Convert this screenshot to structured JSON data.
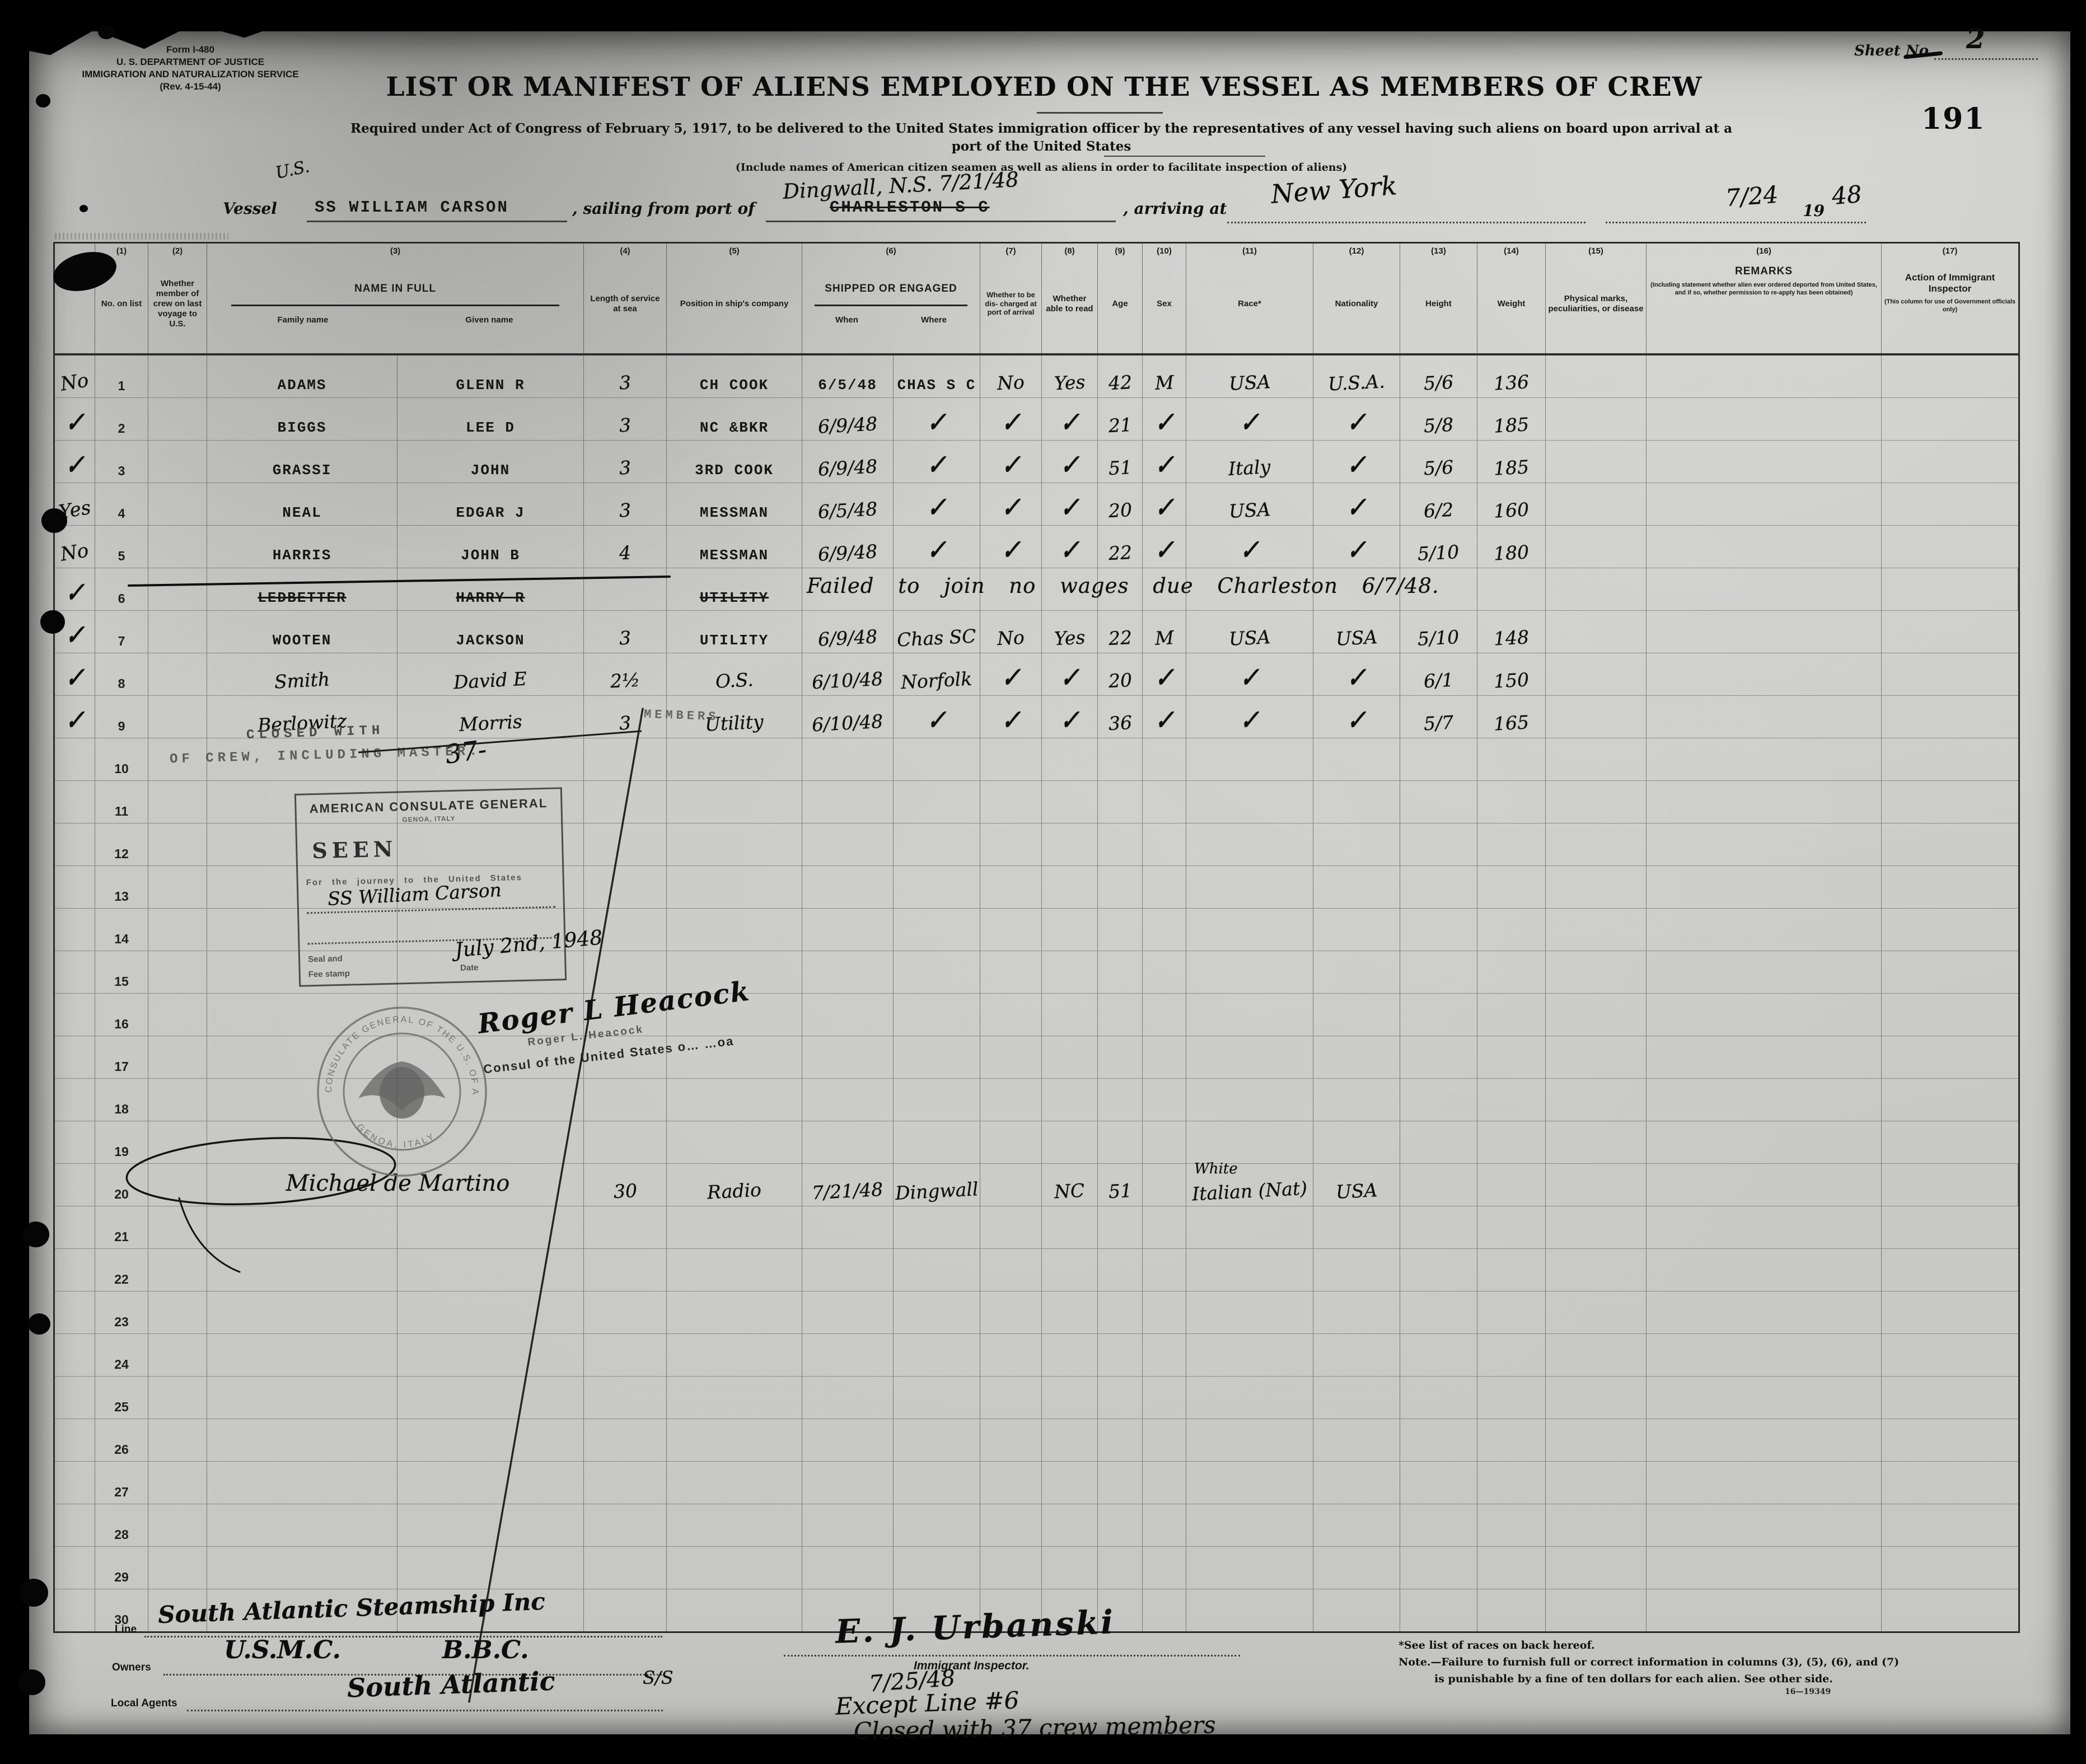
{
  "meta": {
    "form_no": "Form I-480",
    "dept": "U. S. DEPARTMENT OF JUSTICE",
    "service": "IMMIGRATION AND NATURALIZATION SERVICE",
    "rev": "(Rev. 4-15-44)",
    "sheet_label": "Sheet No.",
    "sheet_value": "2",
    "page_stamp": "191"
  },
  "title": "LIST OR MANIFEST OF ALIENS EMPLOYED ON THE VESSEL AS MEMBERS OF CREW",
  "subtitle1": "Required under Act of Congress of February 5, 1917, to be delivered to the United States immigration officer by the representatives of any vessel having such aliens on board upon arrival at a",
  "subtitle2": "port of the United States",
  "subtitle3": "(Include names of American citizen seamen as well as aliens in order to facilitate inspection of aliens)",
  "vessel": {
    "us_note": "U.S.",
    "vessel_label": "Vessel",
    "vessel_name": "SS WILLIAM CARSON",
    "sailing_label": ", sailing from port of",
    "port_struck": "CHARLESTON S C",
    "port_hand": "Dingwall, N.S. 7/21/48",
    "arriving_label": ", arriving at",
    "arrive_port": "New York",
    "date_hand": "7/24",
    "year_printed": "19",
    "year_hand": "48"
  },
  "header": {
    "c1n": "(1)",
    "c1": "No. on list",
    "c2n": "(2)",
    "c2": "Whether member of crew on last voyage to U.S.",
    "c3n": "(3)",
    "c3": "NAME IN FULL",
    "c3a": "Family name",
    "c3b": "Given name",
    "c4n": "(4)",
    "c4": "Length of service at sea",
    "c5n": "(5)",
    "c5": "Position in ship's company",
    "c6n": "(6)",
    "c6": "SHIPPED OR ENGAGED",
    "c6a": "When",
    "c6b": "Where",
    "c7n": "(7)",
    "c7": "Whether to be dis- charged at port of arrival",
    "c8n": "(8)",
    "c8": "Whether able to read",
    "c9n": "(9)",
    "c9": "Age",
    "c10n": "(10)",
    "c10": "Sex",
    "c11n": "(11)",
    "c11": "Race*",
    "c12n": "(12)",
    "c12": "Nationality",
    "c13n": "(13)",
    "c13": "Height",
    "c14n": "(14)",
    "c14": "Weight",
    "c15n": "(15)",
    "c15": "Physical marks, peculiarities, or disease",
    "c16n": "(16)",
    "c16": "REMARKS",
    "c16note": "(Including statement whether alien ever ordered deported from United States, and if so, whether permission to re-apply has been obtained)",
    "c17n": "(17)",
    "c17": "Action of Immigrant Inspector",
    "c17note": "(This column for use of Government officials only)"
  },
  "table": {
    "rows": [
      {
        "no": "1",
        "margin": "No",
        "family": "ADAMS",
        "given": "GLENN R",
        "length": "3",
        "position": "CH COOK",
        "when": "6/5/48",
        "where": "CHAS S C",
        "discharge": "No",
        "read": "Yes",
        "age": "42",
        "sex": "M",
        "race": "USA",
        "nationality": "U.S.A.",
        "height": "5/6",
        "weight": "136",
        "typed": [
          "family",
          "given",
          "position",
          "when",
          "where"
        ]
      },
      {
        "no": "2",
        "margin": "✓",
        "family": "BIGGS",
        "given": "LEE D",
        "length": "3",
        "position": "NC &BKR",
        "when": "6/9/48",
        "where": "✓",
        "discharge": "✓",
        "read": "✓",
        "age": "21",
        "sex": "✓",
        "race": "✓",
        "nationality": "✓",
        "height": "5/8",
        "weight": "185",
        "typed": [
          "family",
          "given",
          "position"
        ]
      },
      {
        "no": "3",
        "margin": "✓",
        "family": "GRASSI",
        "given": "JOHN",
        "length": "3",
        "position": "3RD COOK",
        "when": "6/9/48",
        "where": "✓",
        "discharge": "✓",
        "read": "✓",
        "age": "51",
        "sex": "✓",
        "race": "Italy",
        "nationality": "✓",
        "height": "5/6",
        "weight": "185",
        "typed": [
          "family",
          "given",
          "position"
        ]
      },
      {
        "no": "4",
        "margin": "Yes",
        "family": "NEAL",
        "given": "EDGAR J",
        "length": "3",
        "position": "MESSMAN",
        "when": "6/5/48",
        "where": "✓",
        "discharge": "✓",
        "read": "✓",
        "age": "20",
        "sex": "✓",
        "race": "USA",
        "nationality": "✓",
        "height": "6/2",
        "weight": "160",
        "typed": [
          "family",
          "given",
          "position"
        ]
      },
      {
        "no": "5",
        "margin": "No",
        "family": "HARRIS",
        "given": "JOHN B",
        "length": "4",
        "position": "MESSMAN",
        "when": "6/9/48",
        "where": "✓",
        "discharge": "✓",
        "read": "✓",
        "age": "22",
        "sex": "✓",
        "race": "✓",
        "nationality": "✓",
        "height": "5/10",
        "weight": "180",
        "typed": [
          "family",
          "given",
          "position"
        ]
      },
      {
        "no": "6",
        "margin": "✓",
        "family": "LEDBETTER",
        "given": "HARRY R",
        "position": "UTILITY",
        "struck": true,
        "note": "Failed to join no wages due Charleston 6/7/48.",
        "typed": [
          "family",
          "given",
          "position"
        ]
      },
      {
        "no": "7",
        "margin": "✓",
        "family": "WOOTEN",
        "given": "JACKSON",
        "length": "3",
        "position": "UTILITY",
        "when": "6/9/48",
        "where": "Chas SC",
        "discharge": "No",
        "read": "Yes",
        "age": "22",
        "sex": "M",
        "race": "USA",
        "nationality": "USA",
        "height": "5/10",
        "weight": "148",
        "typed": [
          "family",
          "given",
          "position"
        ]
      },
      {
        "no": "8",
        "margin": "✓",
        "family": "Smith",
        "given": "David E",
        "length": "2½",
        "position": "O.S.",
        "when": "6/10/48",
        "where": "Norfolk",
        "discharge": "✓",
        "read": "✓",
        "age": "20",
        "sex": "✓",
        "race": "✓",
        "nationality": "✓",
        "height": "6/1",
        "weight": "150"
      },
      {
        "no": "9",
        "margin": "✓",
        "family": "Berlowitz",
        "given": "Morris",
        "length": "3",
        "position": "Utility",
        "when": "6/10/48",
        "where": "✓",
        "discharge": "✓",
        "read": "✓",
        "age": "36",
        "sex": "✓",
        "race": "✓",
        "nationality": "✓",
        "height": "5/7",
        "weight": "165"
      },
      {
        "no": "10"
      },
      {
        "no": "11"
      },
      {
        "no": "12"
      },
      {
        "no": "13"
      },
      {
        "no": "14"
      },
      {
        "no": "15"
      },
      {
        "no": "16"
      },
      {
        "no": "17"
      },
      {
        "no": "18"
      },
      {
        "no": "19"
      },
      {
        "no": "20",
        "name_span": "Michael de Martino",
        "length": "30",
        "position": "Radio",
        "when": "7/21/48",
        "where": "Dingwall",
        "read": "NC",
        "age": "51",
        "race": "Italian (Nat)",
        "race_above": "White",
        "nationality": "USA"
      },
      {
        "no": "21"
      },
      {
        "no": "22"
      },
      {
        "no": "23"
      },
      {
        "no": "24"
      },
      {
        "no": "25"
      },
      {
        "no": "26"
      },
      {
        "no": "27"
      },
      {
        "no": "28"
      },
      {
        "no": "29"
      },
      {
        "no": "30"
      }
    ]
  },
  "closed_stamp": {
    "line1": "CLOSED WITH",
    "value": "37-",
    "members": "MEMBERS",
    "line2": "OF CREW, INCLUDING MASTER."
  },
  "consulate_stamp": {
    "l1": "AMERICAN CONSULATE GENERAL",
    "l2": "GENOA, ITALY",
    "seen": "SEEN",
    "journey": "For the journey to the United States",
    "ship": "SS William Carson",
    "seal1": "Seal and",
    "seal2": "Fee stamp",
    "date_label": "Date",
    "date_value": "July 2nd, 1948"
  },
  "seal": {
    "top": "CONSULATE GENERAL OF THE U.S. OF AMERICA",
    "bottom": "GENOA, ITALY"
  },
  "consul": {
    "script": "Roger L Heacock",
    "typed_name": "Roger L. Heacock",
    "typed_title": "Consul of the United States o…  …oa"
  },
  "footer": {
    "line_label": "Line",
    "line_value": "South Atlantic Steamship Inc",
    "owners_label": "Owners",
    "owners_value1": "U.S.M.C.",
    "owners_value2": "B.B.C.",
    "agents_label": "Local Agents",
    "agents_value": "South Atlantic",
    "agents_suffix": "S/S",
    "inspector_sig": "E. J. Urbanski",
    "inspector_title": "Immigrant Inspector.",
    "inspector_date": "7/25/48",
    "except_note": "Except Line #6",
    "closed_note": "Closed with 37 crew members"
  },
  "notes": {
    "races": "*See list of races on back hereof.",
    "note1": "Note.—Failure to furnish full or correct information in columns (3), (5), (6), and (7)",
    "note2": "is punishable by a fine of ten dollars for each alien.   See other side.",
    "formno": "16—19349"
  }
}
